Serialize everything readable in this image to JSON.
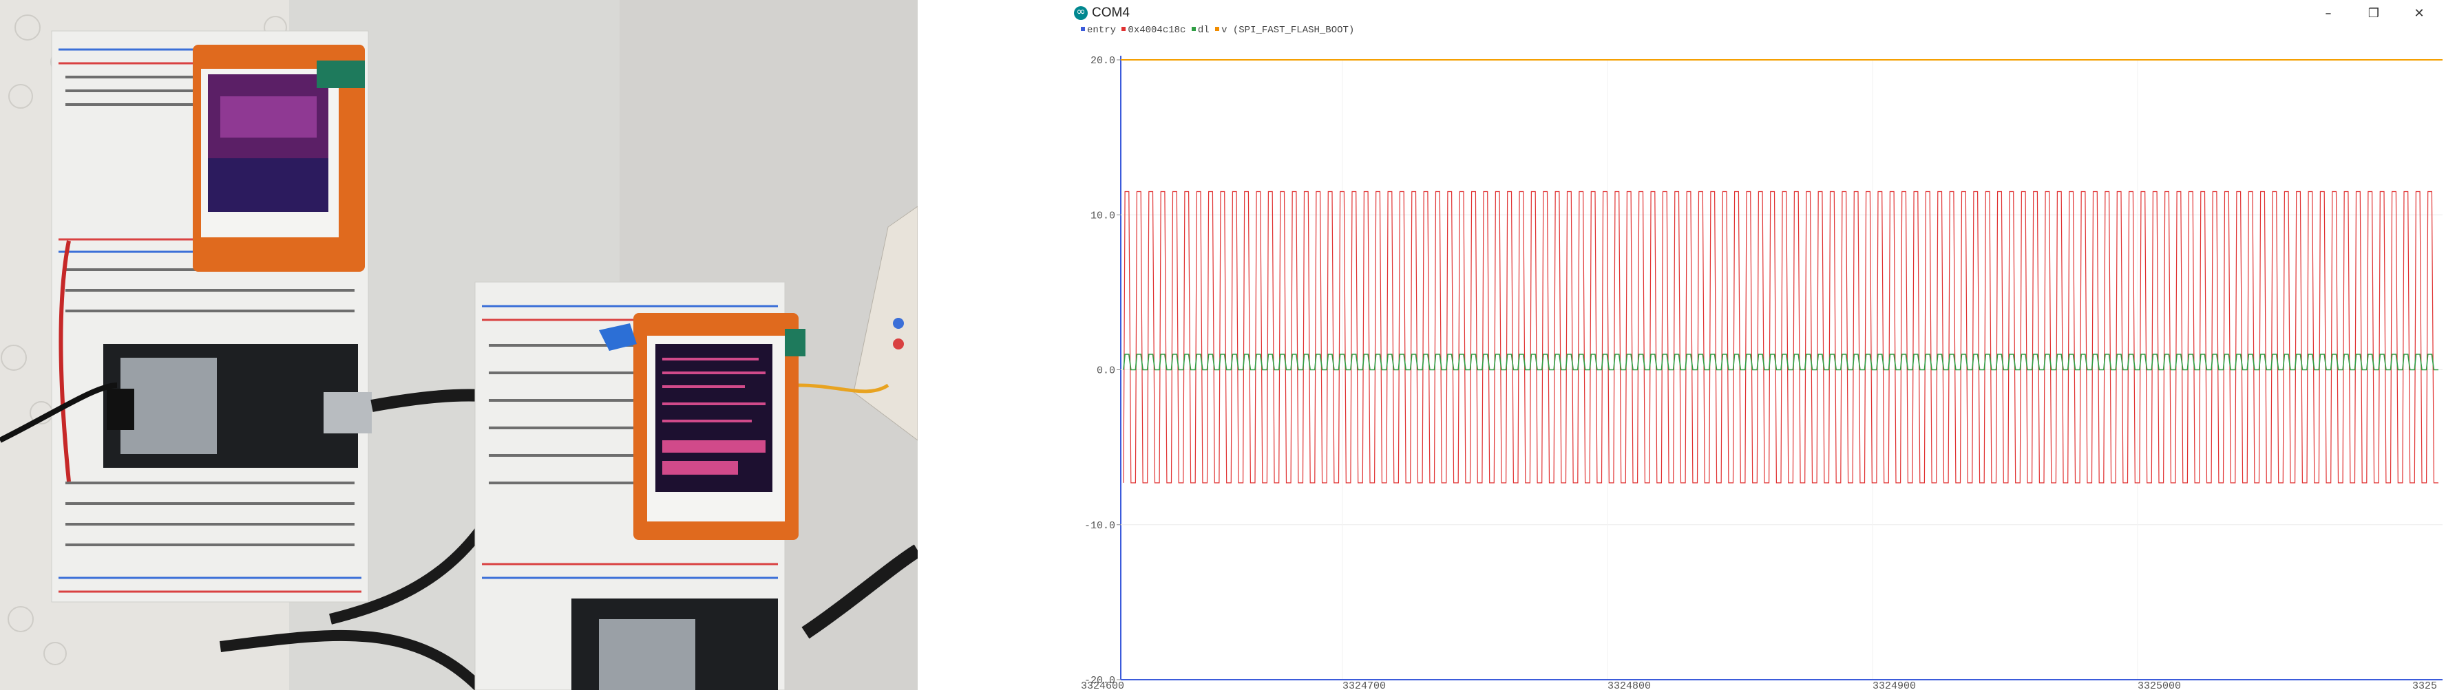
{
  "window": {
    "title": "COM4",
    "controls": {
      "minimize_icon": "minimize-icon",
      "maximize_icon": "restore-icon",
      "close_icon": "close-icon"
    }
  },
  "legend": {
    "items": [
      {
        "label": "entry",
        "color": "#3b5bdb"
      },
      {
        "label": "0x4004c18c",
        "color": "#e03131"
      },
      {
        "label": "dl",
        "color": "#2f9e44"
      },
      {
        "label": "v",
        "color": "#f08c00"
      },
      {
        "label": "(SPI_FAST_FLASH_BOOT)",
        "color": ""
      }
    ]
  },
  "colors": {
    "signal_red": "#e03131",
    "signal_green": "#2f9e44",
    "signal_orange": "#f59f00",
    "signal_blue": "#3b5bdb",
    "axis": "#3b5bdb"
  },
  "chart_data": {
    "type": "line",
    "y_ticks": [
      "20.0",
      "10.0",
      "0.0",
      "-10.0",
      "-20.0"
    ],
    "x_ticks": [
      "3324600",
      "3324700",
      "3324800",
      "3324900",
      "3325000",
      "3325"
    ],
    "ylim": [
      -20,
      20
    ],
    "grid": true,
    "series": [
      {
        "color": "#e03131",
        "style": "square-wave",
        "high": 11.5,
        "low": -7.3,
        "cycles": 110
      },
      {
        "color": "#2f9e44",
        "style": "square-wave",
        "high": 1,
        "low": 0,
        "cycles": 110
      },
      {
        "color": "#f59f00",
        "style": "constant",
        "value": 20
      },
      {
        "color": "#3b5bdb",
        "style": "constant",
        "value": -20
      }
    ]
  }
}
